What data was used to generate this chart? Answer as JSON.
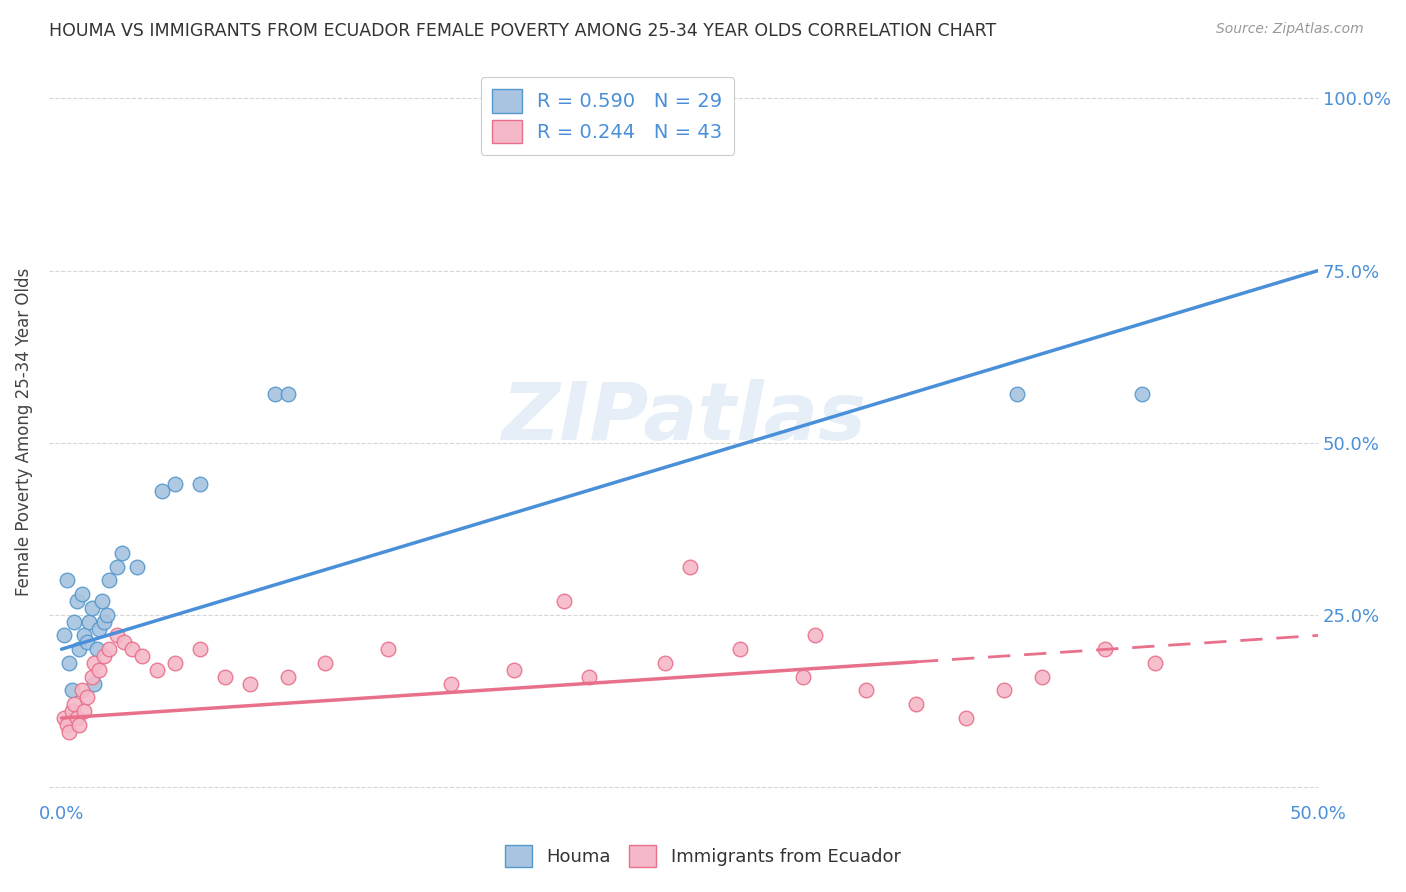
{
  "title": "HOUMA VS IMMIGRANTS FROM ECUADOR FEMALE POVERTY AMONG 25-34 YEAR OLDS CORRELATION CHART",
  "source": "Source: ZipAtlas.com",
  "ylabel": "Female Poverty Among 25-34 Year Olds",
  "xlim": [
    -0.005,
    0.5
  ],
  "ylim": [
    -0.02,
    1.05
  ],
  "yticks": [
    0.0,
    0.25,
    0.5,
    0.75,
    1.0
  ],
  "ytick_labels": [
    "",
    "25.0%",
    "50.0%",
    "75.0%",
    "100.0%"
  ],
  "xticks": [
    0.0,
    0.1,
    0.2,
    0.3,
    0.4,
    0.5
  ],
  "xtick_labels": [
    "0.0%",
    "",
    "",
    "",
    "",
    "50.0%"
  ],
  "houma_fill_color": "#a8c4e0",
  "houma_edge_color": "#5599cc",
  "ecuador_fill_color": "#f5b8c8",
  "ecuador_edge_color": "#e8708a",
  "houma_line_color": "#4a90d9",
  "ecuador_line_color": "#e8708a",
  "legend_label1": "R = 0.590   N = 29",
  "legend_label2": "R = 0.244   N = 43",
  "legend_text_color": "#4a90d9",
  "watermark": "ZIPatlas",
  "grid_color": "#cccccc",
  "houma_line_x0": 0.0,
  "houma_line_y0": 0.2,
  "houma_line_x1": 0.5,
  "houma_line_y1": 0.75,
  "ecuador_line_x0": 0.0,
  "ecuador_line_y0": 0.1,
  "ecuador_line_x1": 0.5,
  "ecuador_line_y1": 0.22,
  "houma_x": [
    0.001,
    0.002,
    0.003,
    0.004,
    0.005,
    0.006,
    0.007,
    0.008,
    0.009,
    0.01,
    0.011,
    0.012,
    0.013,
    0.014,
    0.015,
    0.016,
    0.017,
    0.018,
    0.019,
    0.022,
    0.024,
    0.03,
    0.04,
    0.045,
    0.055,
    0.085,
    0.09,
    0.38,
    0.43
  ],
  "houma_y": [
    0.22,
    0.3,
    0.18,
    0.14,
    0.24,
    0.27,
    0.2,
    0.28,
    0.22,
    0.21,
    0.24,
    0.26,
    0.15,
    0.2,
    0.23,
    0.27,
    0.24,
    0.25,
    0.3,
    0.32,
    0.34,
    0.32,
    0.43,
    0.44,
    0.44,
    0.57,
    0.57,
    0.57,
    0.57
  ],
  "ecuador_x": [
    0.001,
    0.002,
    0.003,
    0.004,
    0.005,
    0.006,
    0.007,
    0.008,
    0.009,
    0.01,
    0.012,
    0.013,
    0.015,
    0.017,
    0.019,
    0.022,
    0.025,
    0.028,
    0.032,
    0.038,
    0.045,
    0.055,
    0.065,
    0.075,
    0.09,
    0.105,
    0.13,
    0.155,
    0.18,
    0.21,
    0.24,
    0.27,
    0.295,
    0.32,
    0.34,
    0.36,
    0.375,
    0.39,
    0.415,
    0.435,
    0.25,
    0.2,
    0.3
  ],
  "ecuador_y": [
    0.1,
    0.09,
    0.08,
    0.11,
    0.12,
    0.1,
    0.09,
    0.14,
    0.11,
    0.13,
    0.16,
    0.18,
    0.17,
    0.19,
    0.2,
    0.22,
    0.21,
    0.2,
    0.19,
    0.17,
    0.18,
    0.2,
    0.16,
    0.15,
    0.16,
    0.18,
    0.2,
    0.15,
    0.17,
    0.16,
    0.18,
    0.2,
    0.16,
    0.14,
    0.12,
    0.1,
    0.14,
    0.16,
    0.2,
    0.18,
    0.32,
    0.27,
    0.22
  ]
}
